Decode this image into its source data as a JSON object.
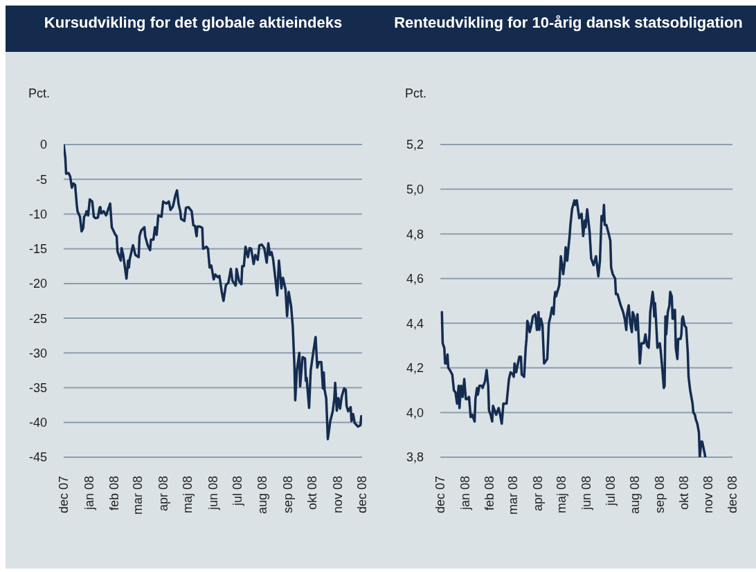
{
  "chart_data": [
    {
      "type": "line",
      "title": "Kursudvikling for det globale aktieindeks",
      "ylabel": "Pct.",
      "grid": "y",
      "xlim": [
        "2007-12",
        "2008-12"
      ],
      "xticks": [
        {
          "value": "2007-12",
          "label": "dec 07"
        },
        {
          "value": "2008-01",
          "label": "jan 08"
        },
        {
          "value": "2008-02",
          "label": "feb 08"
        },
        {
          "value": "2008-03",
          "label": "mar 08"
        },
        {
          "value": "2008-04",
          "label": "apr 08"
        },
        {
          "value": "2008-05",
          "label": "maj 08"
        },
        {
          "value": "2008-06",
          "label": "jun 08"
        },
        {
          "value": "2008-07",
          "label": "jul 08"
        },
        {
          "value": "2008-08",
          "label": "aug 08"
        },
        {
          "value": "2008-09",
          "label": "sep 08"
        },
        {
          "value": "2008-10",
          "label": "okt 08"
        },
        {
          "value": "2008-11",
          "label": "nov 08"
        },
        {
          "value": "2008-12",
          "label": "dec 08"
        }
      ],
      "ylim": [
        -45,
        0
      ],
      "yticks": [
        0,
        -5,
        -10,
        -15,
        -20,
        -25,
        -30,
        -35,
        -40,
        -45
      ],
      "x": [
        "2007-12-01",
        "2007-12-03",
        "2007-12-04",
        "2007-12-07",
        "2007-12-09",
        "2007-12-11",
        "2007-12-13",
        "2007-12-15",
        "2007-12-17",
        "2007-12-18",
        "2007-12-21",
        "2007-12-23",
        "2007-12-25",
        "2007-12-26",
        "2007-12-28",
        "2007-12-29",
        "2007-12-31",
        "2008-01-02",
        "2008-01-05",
        "2008-01-07",
        "2008-01-09",
        "2008-01-12",
        "2008-01-14",
        "2008-01-15",
        "2008-01-16",
        "2008-01-19",
        "2008-01-22",
        "2008-01-27",
        "2008-01-29",
        "2008-02-02",
        "2008-02-04",
        "2008-02-05",
        "2008-02-09",
        "2008-02-10",
        "2008-02-12",
        "2008-02-16",
        "2008-02-18",
        "2008-02-19",
        "2008-02-20",
        "2008-02-24",
        "2008-02-27",
        "2008-03-02",
        "2008-03-03",
        "2008-03-05",
        "2008-03-09",
        "2008-03-10",
        "2008-03-13",
        "2008-03-16",
        "2008-03-17",
        "2008-03-20",
        "2008-03-22",
        "2008-03-24",
        "2008-03-26",
        "2008-03-30",
        "2008-04-01",
        "2008-04-05",
        "2008-04-08",
        "2008-04-10",
        "2008-04-13",
        "2008-04-16",
        "2008-04-18",
        "2008-04-20",
        "2008-04-22",
        "2008-04-23",
        "2008-04-27",
        "2008-04-29",
        "2008-05-02",
        "2008-05-06",
        "2008-05-08",
        "2008-05-10",
        "2008-05-12",
        "2008-05-13",
        "2008-05-16",
        "2008-05-19",
        "2008-05-20",
        "2008-05-24",
        "2008-05-26",
        "2008-05-28",
        "2008-05-30",
        "2008-06-02",
        "2008-06-04",
        "2008-06-07",
        "2008-06-09",
        "2008-06-12",
        "2008-06-14",
        "2008-06-17",
        "2008-06-20",
        "2008-06-23",
        "2008-06-25",
        "2008-06-29",
        "2008-06-30",
        "2008-07-03",
        "2008-07-06",
        "2008-07-07",
        "2008-07-09",
        "2008-07-11",
        "2008-07-14",
        "2008-07-16",
        "2008-07-18",
        "2008-07-21",
        "2008-07-23",
        "2008-07-26",
        "2008-07-28",
        "2008-07-31",
        "2008-08-03",
        "2008-08-06",
        "2008-08-08",
        "2008-08-10",
        "2008-08-12",
        "2008-08-14",
        "2008-08-19",
        "2008-08-21",
        "2008-08-23",
        "2008-08-24",
        "2008-08-26",
        "2008-08-29",
        "2008-08-31",
        "2008-09-02",
        "2008-09-05",
        "2008-09-07",
        "2008-09-09",
        "2008-09-10",
        "2008-09-12",
        "2008-09-15",
        "2008-09-16",
        "2008-09-19",
        "2008-09-22",
        "2008-09-23",
        "2008-09-24",
        "2008-09-27",
        "2008-09-29",
        "2008-10-02",
        "2008-10-05",
        "2008-10-07",
        "2008-10-09",
        "2008-10-12",
        "2008-10-14",
        "2008-10-15",
        "2008-10-16",
        "2008-10-18",
        "2008-10-20",
        "2008-10-23",
        "2008-10-26",
        "2008-10-28",
        "2008-10-29",
        "2008-10-31",
        "2008-11-02",
        "2008-11-04",
        "2008-11-06",
        "2008-11-09",
        "2008-11-11",
        "2008-11-12",
        "2008-11-14",
        "2008-11-17",
        "2008-11-18",
        "2008-11-20",
        "2008-11-22",
        "2008-11-26",
        "2008-11-29",
        "2008-11-30"
      ],
      "series": [
        {
          "color": "#142c50",
          "values": [
            0,
            -1.9,
            -4.2,
            -4.1,
            -4.6,
            -6.2,
            -5.6,
            -5.8,
            -8.6,
            -9.6,
            -10.4,
            -12.5,
            -12.0,
            -10.4,
            -10.1,
            -9.6,
            -10.2,
            -7.9,
            -8.2,
            -10.4,
            -10.6,
            -10.5,
            -9.1,
            -9.0,
            -9.9,
            -9.6,
            -10.2,
            -8.5,
            -11.9,
            -12.9,
            -13.2,
            -15.4,
            -16.7,
            -14.9,
            -15.9,
            -19.3,
            -16.7,
            -17.7,
            -16.5,
            -14.5,
            -15.9,
            -16.2,
            -13.2,
            -12.4,
            -11.9,
            -13.2,
            -14.5,
            -15.2,
            -13.7,
            -13.7,
            -11.9,
            -13.0,
            -10.2,
            -10.4,
            -8.2,
            -8.5,
            -8.2,
            -9.4,
            -8.9,
            -7.3,
            -6.6,
            -8.6,
            -9.6,
            -10.7,
            -11.0,
            -9.1,
            -9.0,
            -9.6,
            -11.6,
            -11.7,
            -13.2,
            -11.8,
            -11.8,
            -12.0,
            -15.0,
            -14.7,
            -15.0,
            -17.7,
            -17.4,
            -19.4,
            -18.7,
            -19.1,
            -18.9,
            -21.3,
            -22.5,
            -20.2,
            -19.9,
            -17.9,
            -19.6,
            -20.3,
            -17.9,
            -19.6,
            -20.1,
            -17.5,
            -17.5,
            -14.7,
            -16.2,
            -14.9,
            -15.0,
            -17.2,
            -15.9,
            -16.6,
            -14.5,
            -14.4,
            -14.9,
            -17.0,
            -14.2,
            -15.9,
            -15.5,
            -16.6,
            -21.7,
            -16.7,
            -19.2,
            -20.7,
            -19.2,
            -20.8,
            -24.7,
            -21.2,
            -23.3,
            -26.2,
            -31.8,
            -36.8,
            -32.5,
            -30.0,
            -34.8,
            -30.6,
            -30.8,
            -34.0,
            -33.6,
            -37.9,
            -32.5,
            -30.0,
            -27.7,
            -32.1,
            -31.3,
            -31.3,
            -35.1,
            -32.8,
            -35.3,
            -36.5,
            -42.4,
            -39.8,
            -38.4,
            -36.5,
            -34.3,
            -38.3,
            -36.5,
            -38.0,
            -36.3,
            -35.1,
            -35.3,
            -37.6,
            -38.4,
            -37.8,
            -39.8,
            -38.8,
            -40.1,
            -40.6,
            -40.4,
            -39.1
          ]
        }
      ]
    },
    {
      "type": "line",
      "title": "Renteudvikling for 10-årig dansk statsobligation",
      "ylabel": "Pct.",
      "grid": "y",
      "xlim": [
        "2007-12",
        "2008-12"
      ],
      "xticks": [
        {
          "value": "2007-12",
          "label": "dec 07"
        },
        {
          "value": "2008-01",
          "label": "jan 08"
        },
        {
          "value": "2008-02",
          "label": "feb 08"
        },
        {
          "value": "2008-03",
          "label": "mar 08"
        },
        {
          "value": "2008-04",
          "label": "apr 08"
        },
        {
          "value": "2008-05",
          "label": "maj 08"
        },
        {
          "value": "2008-06",
          "label": "jun 08"
        },
        {
          "value": "2008-07",
          "label": "jul 08"
        },
        {
          "value": "2008-08",
          "label": "aug 08"
        },
        {
          "value": "2008-09",
          "label": "sep 08"
        },
        {
          "value": "2008-10",
          "label": "okt 08"
        },
        {
          "value": "2008-11",
          "label": "nov 08"
        },
        {
          "value": "2008-12",
          "label": "dec 08"
        }
      ],
      "ylim": [
        3.8,
        5.2
      ],
      "yticks": [
        {
          "value": 5.2,
          "label": "5,2"
        },
        {
          "value": 5.0,
          "label": "5,0"
        },
        {
          "value": 4.8,
          "label": "4,8"
        },
        {
          "value": 4.6,
          "label": "4,6"
        },
        {
          "value": 4.4,
          "label": "4,4"
        },
        {
          "value": 4.2,
          "label": "4,2"
        },
        {
          "value": 4.0,
          "label": "4,0"
        },
        {
          "value": 3.8,
          "label": "3,8"
        }
      ],
      "x": [
        "2007-12-03",
        "2007-12-04",
        "2007-12-06",
        "2007-12-07",
        "2007-12-09",
        "2007-12-10",
        "2007-12-11",
        "2007-12-13",
        "2007-12-16",
        "2007-12-18",
        "2007-12-20",
        "2007-12-22",
        "2007-12-24",
        "2007-12-25",
        "2007-12-27",
        "2007-12-29",
        "2007-12-31",
        "2008-01-02",
        "2008-01-04",
        "2008-01-06",
        "2008-01-08",
        "2008-01-10",
        "2008-01-13",
        "2008-01-14",
        "2008-01-16",
        "2008-01-17",
        "2008-01-19",
        "2008-01-22",
        "2008-01-23",
        "2008-01-26",
        "2008-01-28",
        "2008-01-30",
        "2008-01-31",
        "2008-02-02",
        "2008-02-04",
        "2008-02-05",
        "2008-02-07",
        "2008-02-09",
        "2008-02-12",
        "2008-02-14",
        "2008-02-16",
        "2008-02-18",
        "2008-02-22",
        "2008-02-25",
        "2008-02-27",
        "2008-03-01",
        "2008-03-02",
        "2008-03-03",
        "2008-03-05",
        "2008-03-09",
        "2008-03-11",
        "2008-03-12",
        "2008-03-15",
        "2008-03-17",
        "2008-03-18",
        "2008-03-19",
        "2008-03-20",
        "2008-03-22",
        "2008-03-24",
        "2008-03-26",
        "2008-03-29",
        "2008-03-31",
        "2008-04-02",
        "2008-04-03",
        "2008-04-05",
        "2008-04-07",
        "2008-04-09",
        "2008-04-13",
        "2008-04-15",
        "2008-04-17",
        "2008-04-19",
        "2008-04-21",
        "2008-04-22",
        "2008-04-23",
        "2008-04-24",
        "2008-04-28",
        "2008-04-30",
        "2008-05-02",
        "2008-05-03",
        "2008-05-05",
        "2008-05-06",
        "2008-05-08",
        "2008-05-09",
        "2008-05-11",
        "2008-05-12",
        "2008-05-14",
        "2008-05-17",
        "2008-05-18",
        "2008-05-20",
        "2008-05-23",
        "2008-05-26",
        "2008-05-28",
        "2008-05-30",
        "2008-05-31",
        "2008-06-02",
        "2008-06-05",
        "2008-06-07",
        "2008-06-10",
        "2008-06-13",
        "2008-06-16",
        "2008-06-18",
        "2008-06-20",
        "2008-06-22",
        "2008-06-23",
        "2008-06-24",
        "2008-06-26",
        "2008-06-29",
        "2008-07-01",
        "2008-07-02",
        "2008-07-04",
        "2008-07-07",
        "2008-07-08",
        "2008-07-10",
        "2008-07-14",
        "2008-07-17",
        "2008-07-19",
        "2008-07-21",
        "2008-07-22",
        "2008-07-24",
        "2008-07-26",
        "2008-07-28",
        "2008-07-29",
        "2008-07-31",
        "2008-08-02",
        "2008-08-04",
        "2008-08-05",
        "2008-08-07",
        "2008-08-09",
        "2008-08-12",
        "2008-08-14",
        "2008-08-16",
        "2008-08-18",
        "2008-08-19",
        "2008-08-20",
        "2008-08-23",
        "2008-08-24",
        "2008-08-25",
        "2008-08-26",
        "2008-08-27",
        "2008-08-29",
        "2008-09-01",
        "2008-09-02",
        "2008-09-04",
        "2008-09-06",
        "2008-09-07",
        "2008-09-08",
        "2008-09-09",
        "2008-09-11",
        "2008-09-13",
        "2008-09-14",
        "2008-09-16",
        "2008-09-17",
        "2008-09-18",
        "2008-09-19",
        "2008-09-20",
        "2008-09-21",
        "2008-09-23",
        "2008-09-24",
        "2008-09-27",
        "2008-09-28",
        "2008-09-29",
        "2008-09-30",
        "2008-10-02",
        "2008-10-04",
        "2008-10-06",
        "2008-10-07",
        "2008-10-09",
        "2008-10-12",
        "2008-10-13",
        "2008-10-15",
        "2008-10-16",
        "2008-10-18",
        "2008-10-20",
        "2008-10-21",
        "2008-10-23",
        "2008-10-24",
        "2008-10-27",
        "2008-10-28"
      ],
      "series": [
        {
          "color": "#142c50",
          "values": [
            4.45,
            4.31,
            4.29,
            4.22,
            4.22,
            4.26,
            4.2,
            4.19,
            4.17,
            4.1,
            4.09,
            4.04,
            4.12,
            4.02,
            4.12,
            4.07,
            4.15,
            4.06,
            4.06,
            4.07,
            3.98,
            3.99,
            3.96,
            4.06,
            4.11,
            4.08,
            4.12,
            4.12,
            4.11,
            4.14,
            4.19,
            4.12,
            4.01,
            3.99,
            3.96,
            4.03,
            4.01,
            3.99,
            4.02,
            3.99,
            3.95,
            4.04,
            4.04,
            4.15,
            4.18,
            4.17,
            4.16,
            4.22,
            4.18,
            4.25,
            4.25,
            4.17,
            4.16,
            4.29,
            4.33,
            4.41,
            4.4,
            4.36,
            4.39,
            4.43,
            4.44,
            4.37,
            4.45,
            4.37,
            4.42,
            4.39,
            4.22,
            4.24,
            4.4,
            4.43,
            4.47,
            4.44,
            4.51,
            4.54,
            4.52,
            4.57,
            4.7,
            4.65,
            4.62,
            4.68,
            4.74,
            4.68,
            4.72,
            4.79,
            4.84,
            4.91,
            4.95,
            4.93,
            4.95,
            4.87,
            4.89,
            4.79,
            4.86,
            4.83,
            4.91,
            4.81,
            4.69,
            4.66,
            4.7,
            4.61,
            4.68,
            4.88,
            4.86,
            4.93,
            4.84,
            4.84,
            4.8,
            4.77,
            4.65,
            4.62,
            4.6,
            4.53,
            4.53,
            4.48,
            4.45,
            4.42,
            4.37,
            4.44,
            4.48,
            4.4,
            4.36,
            4.45,
            4.43,
            4.37,
            4.44,
            4.37,
            4.22,
            4.31,
            4.31,
            4.35,
            4.3,
            4.29,
            4.35,
            4.45,
            4.54,
            4.51,
            4.43,
            4.49,
            4.43,
            4.29,
            4.31,
            4.28,
            4.2,
            4.11,
            4.12,
            4.43,
            4.35,
            4.45,
            4.48,
            4.54,
            4.52,
            4.42,
            4.46,
            4.42,
            4.46,
            4.29,
            4.24,
            4.33,
            4.33,
            4.35,
            4.42,
            4.43,
            4.39,
            4.38,
            4.27,
            4.16,
            4.1,
            4.04,
            4.0,
            3.99,
            3.97,
            3.95,
            3.91,
            3.8,
            3.87,
            3.87,
            3.82,
            3.8
          ]
        }
      ]
    }
  ]
}
